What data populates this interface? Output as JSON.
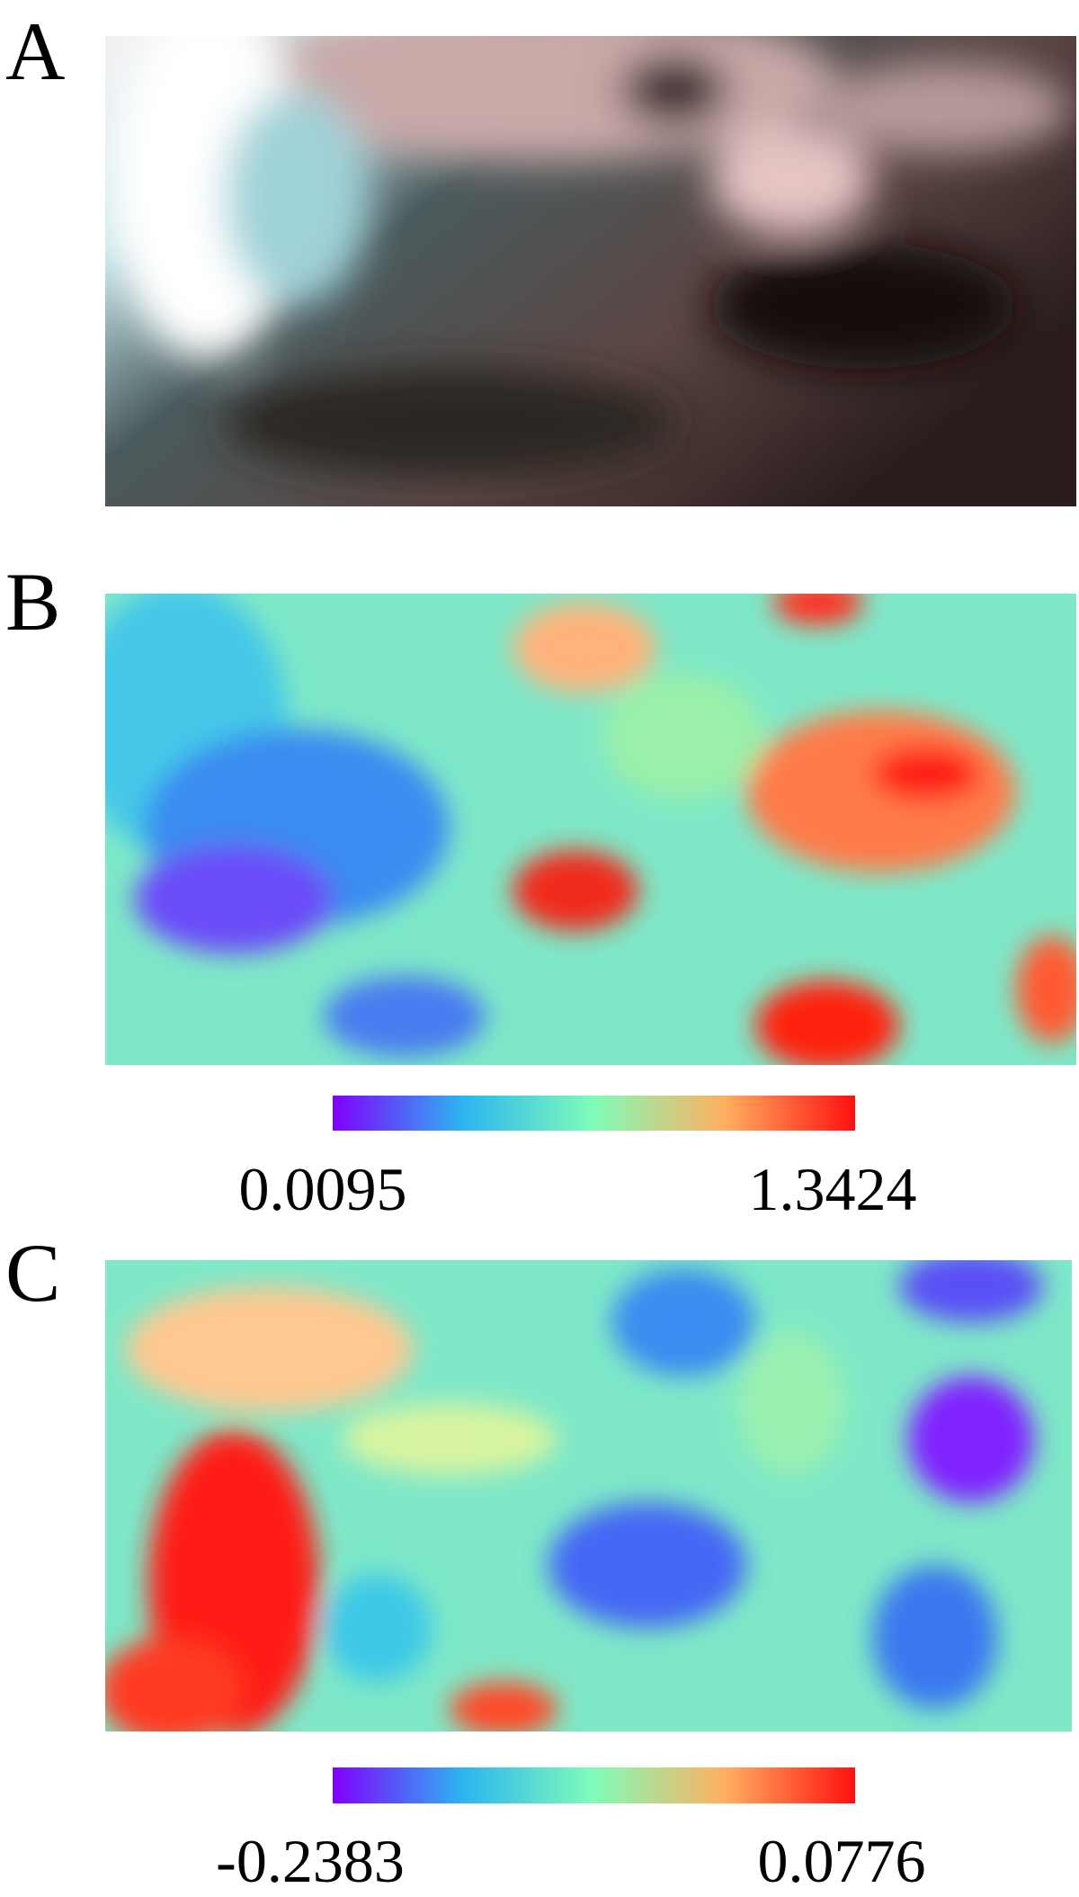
{
  "panels": [
    {
      "label": "A"
    },
    {
      "label": "B",
      "colorbar": {
        "min_label": "0.0095",
        "max_label": "1.3424"
      }
    },
    {
      "label": "C",
      "colorbar": {
        "min_label": "-0.2383",
        "max_label": "0.0776"
      }
    }
  ]
}
